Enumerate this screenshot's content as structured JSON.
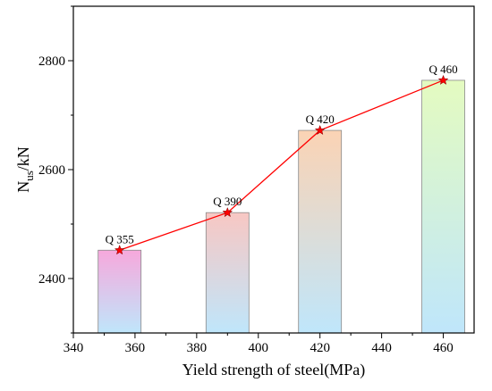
{
  "chart_data": {
    "type": "bar",
    "xlabel": "Yield strength of steel(MPa)",
    "ylabel": {
      "main": "N",
      "sub": "us",
      "rest": "/kN"
    },
    "xlim": [
      340,
      470
    ],
    "ylim": [
      2300,
      2900
    ],
    "xticks": [
      340,
      360,
      380,
      400,
      420,
      440,
      460
    ],
    "yticks": [
      2400,
      2600,
      2800
    ],
    "series": [
      {
        "x": [
          355,
          390,
          420,
          460
        ],
        "values": [
          2452,
          2521,
          2672,
          2764
        ],
        "labels": [
          "Q 355",
          "Q 390",
          "Q 420",
          "Q 460"
        ]
      }
    ],
    "line_color": "#ff0000",
    "marker": "star",
    "bar_gradients": [
      {
        "top": "#f7a8dc",
        "bottom": "#bfe6fb"
      },
      {
        "top": "#f8c7c3",
        "bottom": "#bfe6fb"
      },
      {
        "top": "#fbd3b4",
        "bottom": "#bfe6fb"
      },
      {
        "top": "#e4fbc0",
        "bottom": "#bfe6fb"
      }
    ],
    "grid": false,
    "legend": "none"
  }
}
